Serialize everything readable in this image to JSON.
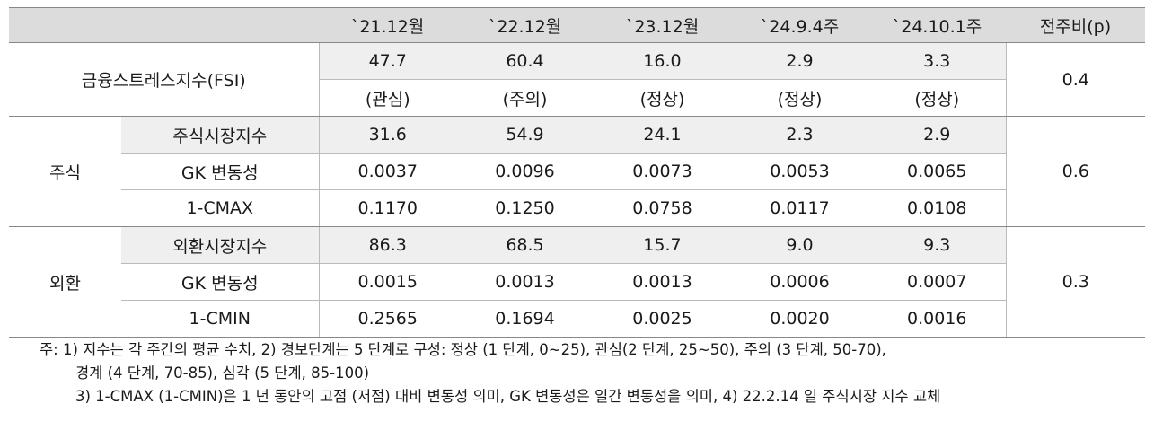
{
  "header": {
    "corner": "",
    "cols": [
      "`21.12월",
      "`22.12월",
      "`23.12월",
      "`24.9.4주",
      "`24.10.1주",
      "전주비(p)"
    ]
  },
  "fsi": {
    "label": "금융스트레스지수(FSI)",
    "values": [
      "47.7",
      "60.4",
      "16.0",
      "2.9",
      "3.3"
    ],
    "status": [
      "(관심)",
      "(주의)",
      "(정상)",
      "(정상)",
      "(정상)"
    ],
    "delta": "0.4"
  },
  "stock": {
    "label": "주식",
    "delta": "0.6",
    "rows": [
      {
        "label": "주식시장지수",
        "values": [
          "31.6",
          "54.9",
          "24.1",
          "2.3",
          "2.9"
        ]
      },
      {
        "label": "GK 변동성",
        "values": [
          "0.0037",
          "0.0096",
          "0.0073",
          "0.0053",
          "0.0065"
        ]
      },
      {
        "label": "1-CMAX",
        "values": [
          "0.1170",
          "0.1250",
          "0.0758",
          "0.0117",
          "0.0108"
        ]
      }
    ]
  },
  "fx": {
    "label": "외환",
    "delta": "0.3",
    "rows": [
      {
        "label": "외환시장지수",
        "values": [
          "86.3",
          "68.5",
          "15.7",
          "9.0",
          "9.3"
        ]
      },
      {
        "label": "GK 변동성",
        "values": [
          "0.0015",
          "0.0013",
          "0.0013",
          "0.0006",
          "0.0007"
        ]
      },
      {
        "label": "1-CMIN",
        "values": [
          "0.2565",
          "0.1694",
          "0.0025",
          "0.0020",
          "0.0016"
        ]
      }
    ]
  },
  "notes": [
    "주: 1) 지수는 각 주간의 평균 수치, 2) 경보단계는 5 단계로 구성: 정상 (1 단계, 0~25), 관심(2 단계, 25~50), 주의 (3 단계, 50-70),",
    "경계 (4 단계, 70-85), 심각 (5 단계, 85-100)",
    "3) 1-CMAX (1-CMIN)은 1 년 동안의 고점 (저점) 대비 변동성 의미, GK 변동성은 일간 변동성을 의미, 4) 22.2.14 일 주식시장 지수 교체"
  ]
}
